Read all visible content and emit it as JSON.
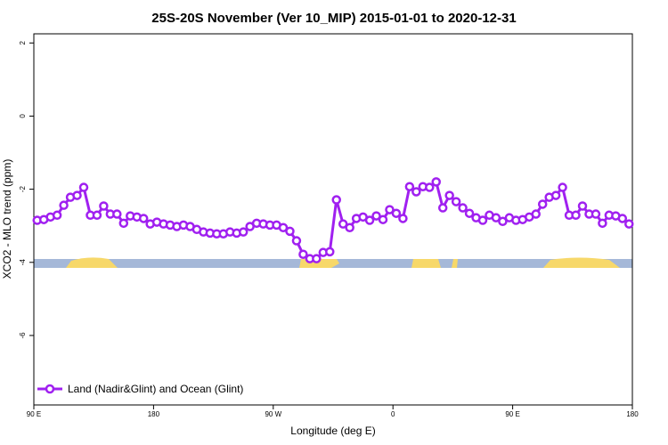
{
  "chart_data": {
    "type": "line",
    "title": "25S-20S November (Ver 10_MIP)   2015-01-01 to 2020-12-31",
    "x_label": "Longitude (deg E)",
    "y_label": "XCO2 - MLO trend (ppm)",
    "xlim": [
      90,
      540
    ],
    "ylim": [
      -7.9,
      2.25
    ],
    "xticks": [
      {
        "value": 90,
        "label": "90 E"
      },
      180,
      {
        "value": 270,
        "label": "90 W"
      },
      {
        "value": 360,
        "label": "0"
      },
      {
        "value": 450,
        "label": "90 E"
      },
      {
        "value": 540,
        "label": "180"
      }
    ],
    "yticks": [
      2,
      0,
      -2,
      -4,
      -6
    ],
    "legend": "bottom left",
    "series": [
      {
        "name": "Land (Nadir&Glint) and Ocean (Glint)",
        "color": "#a020f0",
        "x": [
          92.5,
          97.5,
          102.5,
          107.5,
          112.5,
          117.5,
          122.5,
          127.5,
          132.5,
          137.5,
          142.5,
          147.5,
          152.5,
          157.5,
          162.5,
          167.5,
          172.5,
          177.5,
          182.5,
          187.5,
          192.5,
          197.5,
          202.5,
          207.5,
          212.5,
          217.5,
          222.5,
          227.5,
          232.5,
          237.5,
          242.5,
          247.5,
          252.5,
          257.5,
          262.5,
          267.5,
          272.5,
          277.5,
          282.5,
          287.5,
          292.5,
          297.5,
          302.5,
          307.5,
          312.5,
          317.5,
          322.5,
          327.5,
          332.5,
          337.5,
          342.5,
          347.5,
          352.5,
          357.5,
          362.5,
          367.5,
          372.5,
          377.5,
          382.5,
          387.5,
          392.5,
          397.5,
          402.5,
          407.5,
          412.5,
          417.5,
          422.5,
          427.5,
          432.5,
          437.5,
          442.5,
          447.5,
          452.5,
          457.5,
          462.5,
          467.5,
          472.5,
          477.5,
          482.5,
          487.5,
          492.5,
          497.5,
          502.5,
          507.5,
          512.5,
          517.5,
          522.5,
          527.5,
          532.5,
          537.5
        ],
        "values": [
          -2.85,
          -2.83,
          -2.76,
          -2.71,
          -2.44,
          -2.22,
          -2.17,
          -1.95,
          -2.71,
          -2.71,
          -2.46,
          -2.68,
          -2.68,
          -2.93,
          -2.73,
          -2.76,
          -2.8,
          -2.95,
          -2.9,
          -2.95,
          -2.98,
          -3.02,
          -2.98,
          -3.02,
          -3.1,
          -3.17,
          -3.2,
          -3.22,
          -3.22,
          -3.17,
          -3.2,
          -3.17,
          -3.02,
          -2.93,
          -2.95,
          -2.98,
          -2.98,
          -3.05,
          -3.15,
          -3.41,
          -3.78,
          -3.9,
          -3.9,
          -3.73,
          -3.71,
          -2.29,
          -2.95,
          -3.05,
          -2.8,
          -2.76,
          -2.85,
          -2.73,
          -2.83,
          -2.56,
          -2.66,
          -2.8,
          -1.93,
          -2.07,
          -1.93,
          -1.95,
          -1.8,
          -2.51,
          -2.17,
          -2.34,
          -2.51,
          -2.66,
          -2.78,
          -2.85,
          -2.71,
          -2.78,
          -2.88,
          -2.78,
          -2.85,
          -2.83,
          -2.76,
          -2.68,
          -2.41,
          -2.22,
          -2.17,
          -1.95,
          -2.71,
          -2.71,
          -2.46,
          -2.68,
          -2.68,
          -2.93,
          -2.71,
          -2.73,
          -2.8,
          -2.95
        ]
      }
    ]
  }
}
